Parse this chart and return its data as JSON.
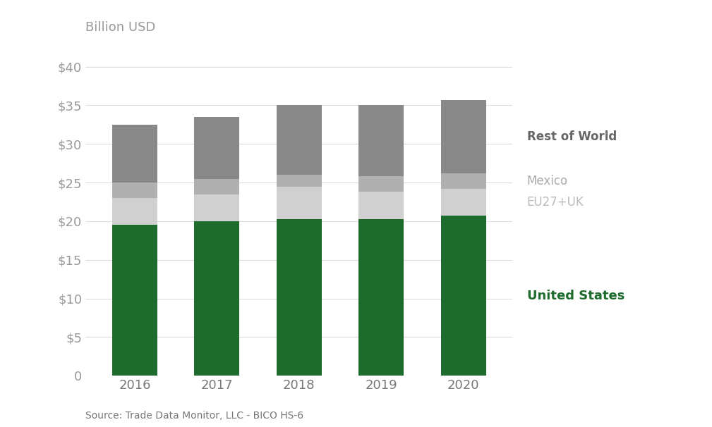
{
  "years": [
    "2016",
    "2017",
    "2018",
    "2019",
    "2020"
  ],
  "united_states": [
    19.5,
    20.0,
    20.3,
    20.3,
    20.7
  ],
  "eu27uk": [
    3.5,
    3.5,
    4.2,
    3.5,
    3.5
  ],
  "mexico": [
    2.0,
    2.0,
    1.5,
    2.0,
    2.0
  ],
  "rest_of_world": [
    7.5,
    8.0,
    9.0,
    9.2,
    9.5
  ],
  "colors": {
    "united_states": "#1e6b2e",
    "eu27uk": "#d0d0d0",
    "mexico": "#b0b0b0",
    "rest_of_world": "#888888"
  },
  "ylim": [
    0,
    42
  ],
  "yticks": [
    0,
    5,
    10,
    15,
    20,
    25,
    30,
    35,
    40
  ],
  "title_label": "Billion USD",
  "source_text": "Source: Trade Data Monitor, LLC - BICO HS-6",
  "legend_labels": {
    "rest_of_world": "Rest of World",
    "mexico": "Mexico",
    "eu27uk": "EU27+UK",
    "united_states": "United States"
  },
  "background_color": "#ffffff",
  "bar_width": 0.55
}
